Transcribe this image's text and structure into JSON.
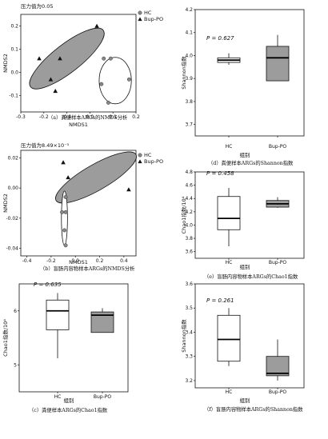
{
  "chart_data": [
    {
      "id": "a",
      "type": "scatter",
      "annotation": "压力值为0.05",
      "caption": "（a）粪便样本ARGs的NMDS分析",
      "xlabel": "NMDS1",
      "ylabel": "NMDS2",
      "xlim": [
        -0.3,
        0.2
      ],
      "ylim": [
        -0.17,
        0.25
      ],
      "xticks": [
        "-0.3",
        "-0.2",
        "-0.1",
        "0.0",
        "0.1",
        "0.2"
      ],
      "yticks": [
        "-0.1",
        "0.0",
        "0.1",
        "0.2"
      ],
      "legend": [
        "HC",
        "Bup-PO"
      ],
      "series": [
        {
          "name": "HC",
          "marker": "circle",
          "points": [
            [
              0.06,
              0.06
            ],
            [
              0.05,
              -0.05
            ],
            [
              0.17,
              -0.03
            ],
            [
              0.08,
              -0.13
            ],
            [
              0.09,
              0.06
            ]
          ]
        },
        {
          "name": "Bup-PO",
          "marker": "triangle",
          "points": [
            [
              -0.22,
              0.06
            ],
            [
              -0.17,
              -0.03
            ],
            [
              -0.15,
              -0.08
            ],
            [
              -0.13,
              0.06
            ],
            [
              0.03,
              0.2
            ]
          ]
        }
      ]
    },
    {
      "id": "b",
      "type": "scatter",
      "annotation": "压力值为8.49×10⁻⁵",
      "caption": "（b）盲肠内容物样本ARGs的NMDS分析",
      "xlabel": "NMDS1",
      "ylabel": "NMDS2",
      "xlim": [
        -0.45,
        0.5
      ],
      "ylim": [
        -0.045,
        0.025
      ],
      "xticks": [
        "-0.4",
        "-0.2",
        "0.0",
        "0.2",
        "0.4"
      ],
      "yticks": [
        "-0.04",
        "-0.02",
        "0.00",
        "0.02"
      ],
      "legend": [
        "HC",
        "Bup-PO"
      ],
      "series": [
        {
          "name": "HC",
          "marker": "circle",
          "points": [
            [
              -0.08,
              -0.006
            ],
            [
              -0.11,
              -0.016
            ],
            [
              -0.08,
              -0.016
            ],
            [
              -0.09,
              -0.028
            ],
            [
              -0.08,
              -0.038
            ]
          ]
        },
        {
          "name": "Bup-PO",
          "marker": "triangle",
          "points": [
            [
              -0.1,
              0.017
            ],
            [
              -0.06,
              0.007
            ],
            [
              0.44,
              -0.001
            ]
          ]
        }
      ]
    },
    {
      "id": "c",
      "type": "box",
      "p_label": "P = 0.635",
      "caption": "（c）粪便样本ARGs的Chao1指数",
      "xlabel": "组别",
      "ylabel": "Chao1指数/10⁴",
      "categories": [
        "HC",
        "Bup-PO"
      ],
      "ylim": [
        4.5,
        6.5
      ],
      "yticks": [
        "5",
        "6"
      ],
      "boxes": [
        {
          "min": 5.12,
          "q1": 5.65,
          "median": 6.0,
          "q3": 6.2,
          "max": 6.33
        },
        {
          "min": 5.6,
          "q1": 5.6,
          "median": 5.92,
          "q3": 5.98,
          "max": 6.05
        }
      ]
    },
    {
      "id": "d",
      "type": "box",
      "p_label": "P = 0.627",
      "caption": "（d）粪便样本ARGs的Shannon指数",
      "xlabel": "组别",
      "ylabel": "Shannon指数",
      "categories": [
        "HC",
        "Bup-PO"
      ],
      "ylim": [
        3.65,
        4.2
      ],
      "yticks": [
        "3.7",
        "3.8",
        "3.9",
        "4.0",
        "4.1",
        "4.2"
      ],
      "boxes": [
        {
          "min": 3.96,
          "q1": 3.97,
          "median": 3.98,
          "q3": 3.99,
          "max": 4.01
        },
        {
          "min": 3.89,
          "q1": 3.89,
          "median": 3.99,
          "q3": 4.04,
          "max": 4.09
        }
      ]
    },
    {
      "id": "e",
      "type": "box",
      "p_label": "P = 0.458",
      "caption": "（e）盲肠内容物样本ARGs的Chao1指数",
      "xlabel": "组别",
      "ylabel": "Chao1指数/10⁴",
      "categories": [
        "HC",
        "Bup-PO"
      ],
      "ylim": [
        3.5,
        4.8
      ],
      "yticks": [
        "3.6",
        "3.8",
        "4.0",
        "4.2",
        "4.4",
        "4.6",
        "4.8"
      ],
      "boxes": [
        {
          "min": 3.68,
          "q1": 3.93,
          "median": 4.1,
          "q3": 4.43,
          "max": 4.56
        },
        {
          "min": 4.26,
          "q1": 4.27,
          "median": 4.32,
          "q3": 4.37,
          "max": 4.42
        }
      ]
    },
    {
      "id": "f",
      "type": "box",
      "p_label": "P = 0.261",
      "caption": "（f）盲肠内容物样本ARGs的Shannon指数",
      "xlabel": "组别",
      "ylabel": "Shannon指数",
      "categories": [
        "HC",
        "Bup-PO"
      ],
      "ylim": [
        3.17,
        3.6
      ],
      "yticks": [
        "3.2",
        "3.3",
        "3.4",
        "3.5",
        "3.6"
      ],
      "boxes": [
        {
          "min": 3.26,
          "q1": 3.28,
          "median": 3.37,
          "q3": 3.47,
          "max": 3.5
        },
        {
          "min": 3.2,
          "q1": 3.22,
          "median": 3.23,
          "q3": 3.3,
          "max": 3.37
        }
      ]
    }
  ]
}
